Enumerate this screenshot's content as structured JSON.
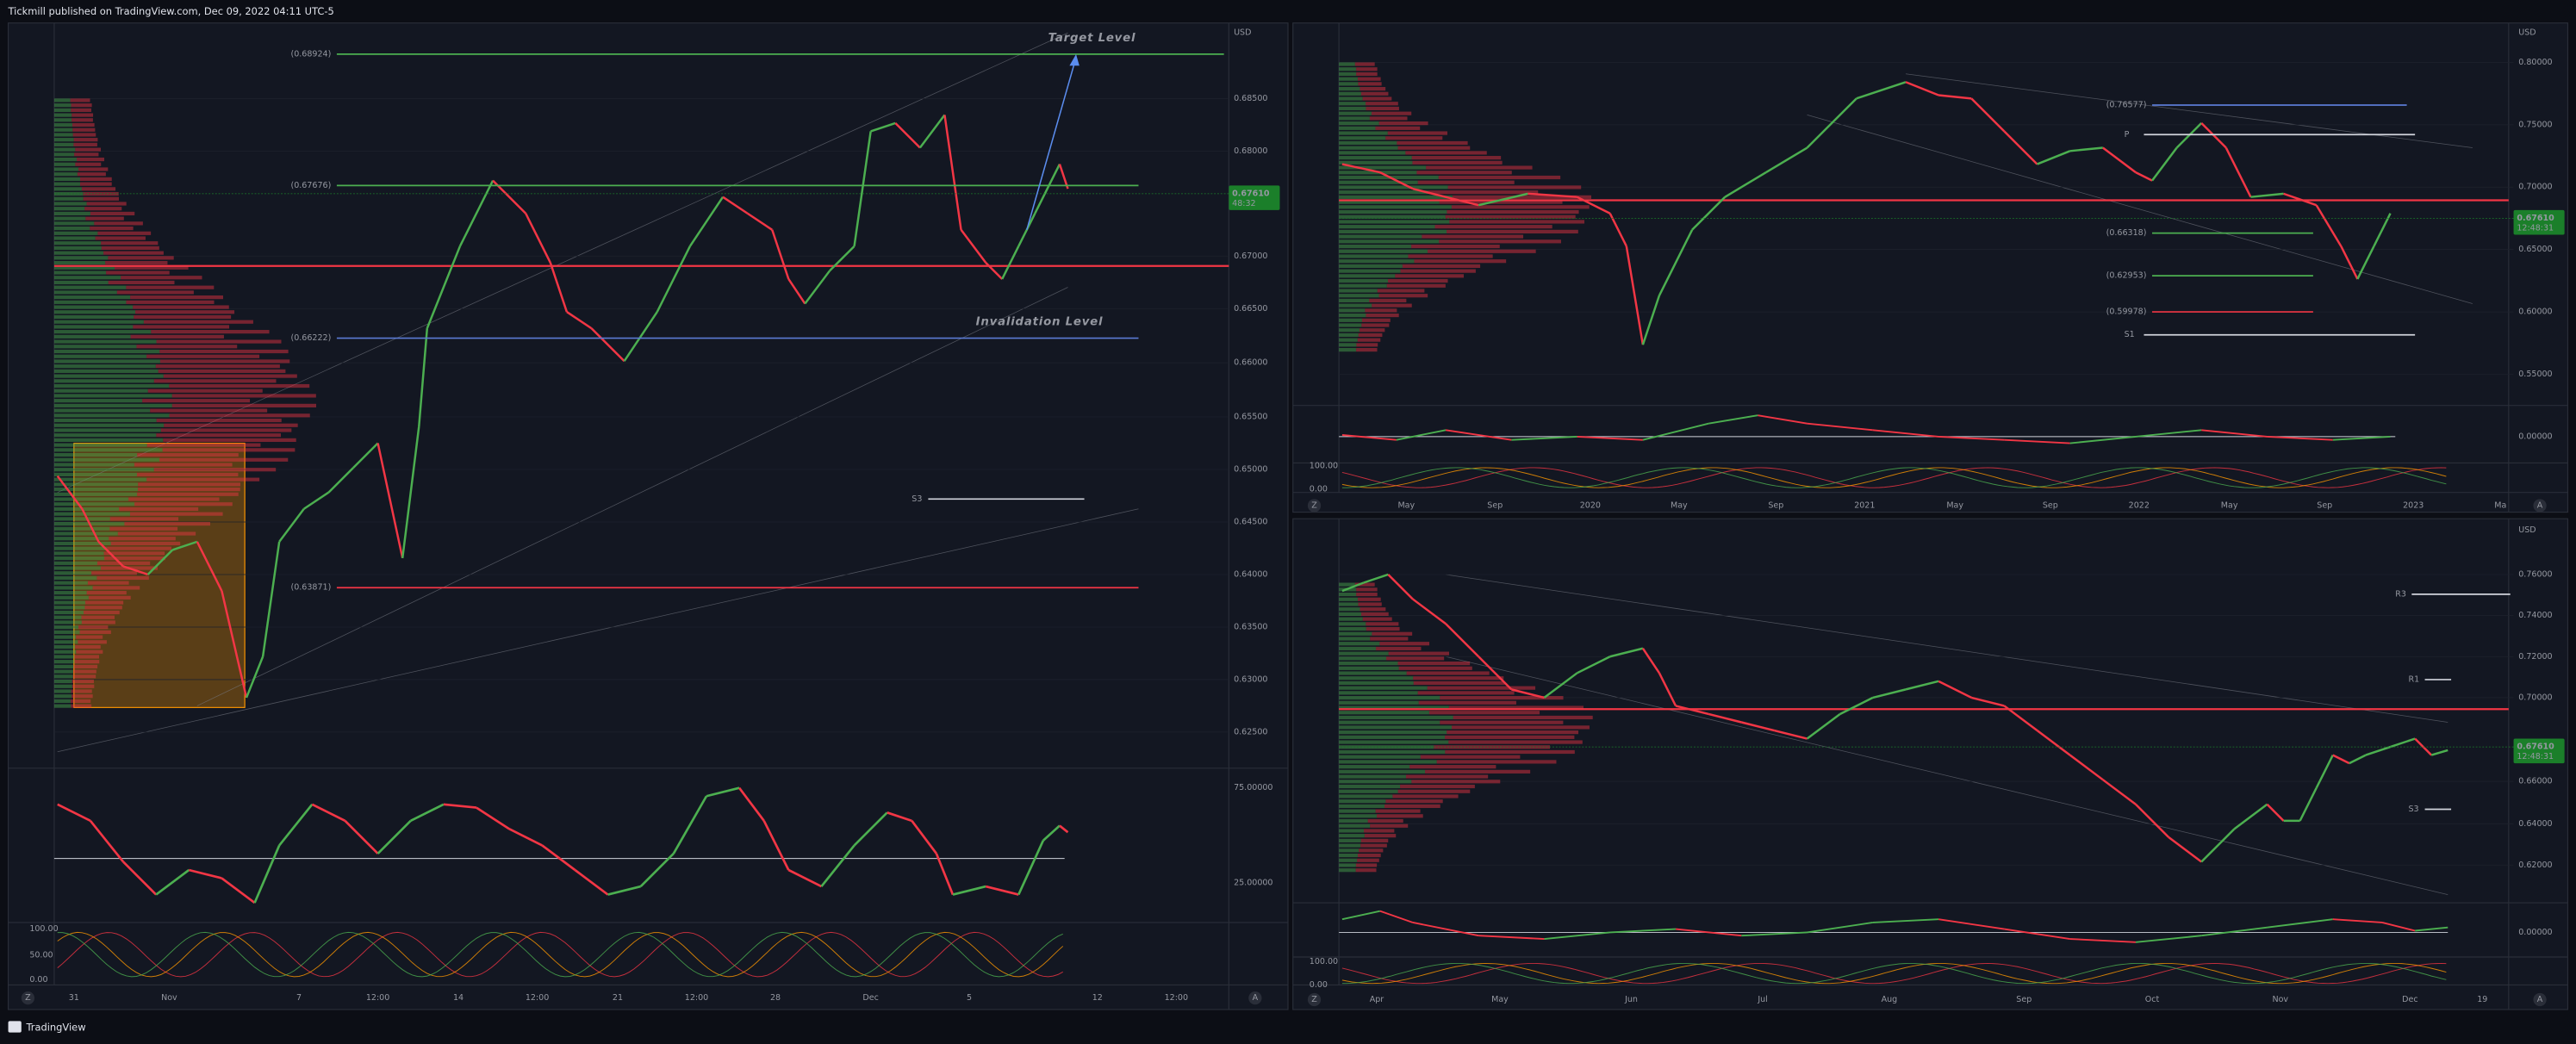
{
  "header": {
    "publisher": "Tickmill published on TradingView.com, Dec 09, 2022 04:11 UTC-5"
  },
  "footer": {
    "brand": "TradingView"
  },
  "panels": [
    {
      "currency": "USD",
      "price_labels": [
        "0.68500",
        "0.68000",
        "0.67000",
        "0.66500",
        "0.66000",
        "0.65500",
        "0.65000",
        "0.64500",
        "0.64000",
        "0.63500",
        "0.63000",
        "0.62500"
      ],
      "current_price": "0.67610",
      "countdown": "48:32",
      "levels": [
        "(0.68924)",
        "(0.67676)",
        "(0.66222)",
        "(0.63871)",
        "S3"
      ],
      "annotations": [
        "Target Level",
        "Invalidation Level"
      ],
      "osc1_labels": [
        "75.00000",
        "25.00000"
      ],
      "osc2_labels": [
        "100.00",
        "50.00",
        "0.00"
      ],
      "time_labels": [
        "31",
        "Nov",
        "7",
        "12:00",
        "14",
        "12:00",
        "21",
        "12:00",
        "28",
        "Dec",
        "5",
        "12",
        "12:00"
      ],
      "scale_buttons": [
        "Z",
        "A"
      ]
    },
    {
      "currency": "USD",
      "price_labels": [
        "0.80000",
        "0.75000",
        "0.70000",
        "0.65000",
        "0.60000",
        "0.55000"
      ],
      "current_price": "0.67610",
      "countdown": "12:48:31",
      "levels": [
        "(0.76577)",
        "P",
        "(0.66318)",
        "(0.62953)",
        "(0.59978)",
        "S1"
      ],
      "annotations": [],
      "osc1_labels": [
        "0.00000"
      ],
      "osc2_labels": [
        "100.00",
        "0.00"
      ],
      "time_labels": [
        "May",
        "Sep",
        "2020",
        "May",
        "Sep",
        "2021",
        "May",
        "Sep",
        "2022",
        "May",
        "Sep",
        "2023",
        "Ma"
      ],
      "scale_buttons": [
        "Z",
        "A"
      ]
    },
    {
      "currency": "USD",
      "price_labels": [
        "0.76000",
        "0.74000",
        "0.72000",
        "0.70000",
        "0.66000",
        "0.64000",
        "0.62000"
      ],
      "current_price": "0.67610",
      "countdown": "12:48:31",
      "levels": [
        "R3",
        "R1",
        "S3"
      ],
      "annotations": [],
      "osc1_labels": [
        "0.00000"
      ],
      "osc2_labels": [
        "100.00",
        "0.00"
      ],
      "time_labels": [
        "Apr",
        "May",
        "Jun",
        "Jul",
        "Aug",
        "Sep",
        "Oct",
        "Nov",
        "Dec",
        "19"
      ],
      "scale_buttons": [
        "Z",
        "A"
      ]
    }
  ]
}
